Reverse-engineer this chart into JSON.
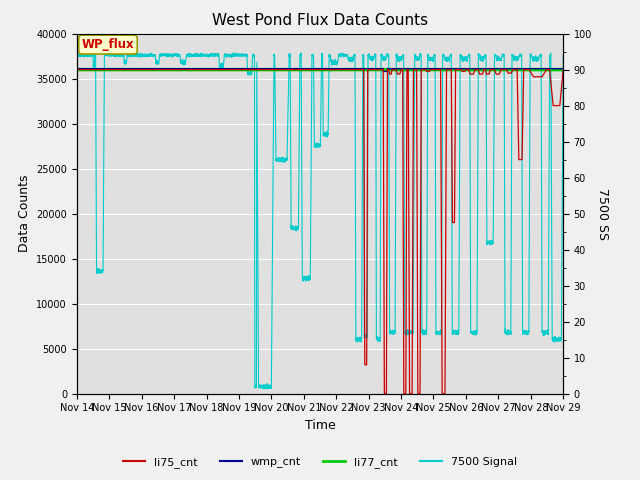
{
  "title": "West Pond Flux Data Counts",
  "xlabel": "Time",
  "ylabel_left": "Data Counts",
  "ylabel_right": "7500 SS",
  "ylim_left": [
    0,
    40000
  ],
  "ylim_right": [
    0,
    100
  ],
  "fig_facecolor": "#f0f0f0",
  "plot_facecolor": "#e0e0e0",
  "legend_labels": [
    "li75_cnt",
    "wmp_cnt",
    "li77_cnt",
    "7500 Signal"
  ],
  "legend_colors": [
    "#cc0000",
    "#000099",
    "#00cc00",
    "#00cccc"
  ],
  "wp_flux_label": "WP_flux",
  "wp_flux_box_facecolor": "#ffffcc",
  "wp_flux_box_edgecolor": "#999900",
  "wp_flux_text_color": "#cc0000",
  "x_start": 14,
  "x_end": 29,
  "x_ticks": [
    14,
    15,
    16,
    17,
    18,
    19,
    20,
    21,
    22,
    23,
    24,
    25,
    26,
    27,
    28,
    29
  ],
  "x_tick_labels": [
    "Nov 14",
    "Nov 15",
    "Nov 16",
    "Nov 17",
    "Nov 18",
    "Nov 19",
    "Nov 20",
    "Nov 21",
    "Nov 22",
    "Nov 23",
    "Nov 24",
    "Nov 25",
    "Nov 26",
    "Nov 27",
    "Nov 28",
    "Nov 29"
  ],
  "yticks_left": [
    0,
    5000,
    10000,
    15000,
    20000,
    25000,
    30000,
    35000,
    40000
  ],
  "yticks_right_major": [
    0,
    10,
    20,
    30,
    40,
    50,
    60,
    70,
    80,
    90,
    100
  ],
  "grid_color": "#ffffff",
  "tick_label_fontsize": 7,
  "axis_label_fontsize": 9,
  "title_fontsize": 11
}
